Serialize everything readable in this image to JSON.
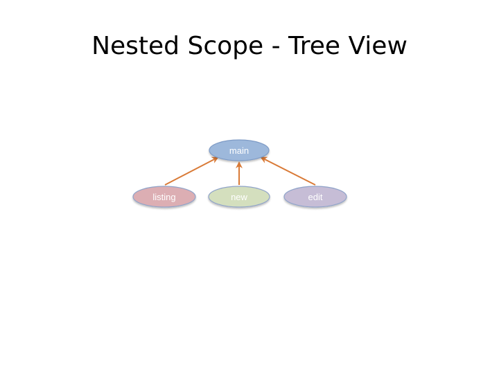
{
  "slide": {
    "title": "Nested Scope - Tree View"
  },
  "tree": {
    "root": {
      "label": "main",
      "fill": "#9db8db",
      "stroke": "#7e9bc6"
    },
    "children": [
      {
        "label": "listing",
        "fill": "#dcaeb3",
        "stroke": "#8fa3c9"
      },
      {
        "label": "new",
        "fill": "#d4dfbe",
        "stroke": "#8fa3c9"
      },
      {
        "label": "edit",
        "fill": "#c6bdd6",
        "stroke": "#8fa3c9"
      }
    ],
    "edge_color": "#d97a37"
  }
}
